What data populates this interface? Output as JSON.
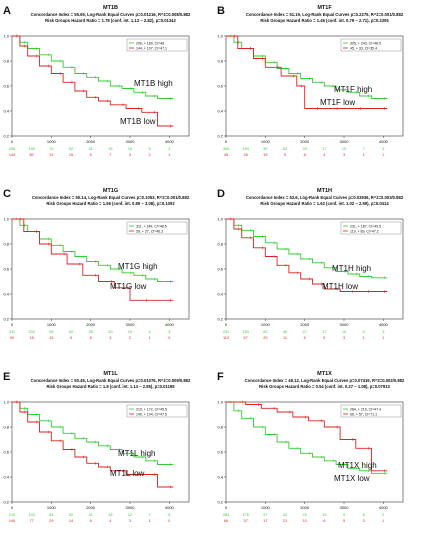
{
  "figure": {
    "colors": {
      "high": "#33cc33",
      "low": "#dd2222",
      "axis": "#333333",
      "text": "#111111"
    }
  },
  "chart_data": [
    {
      "type": "line",
      "panel_letter": "A",
      "title": "MT1B",
      "stats_line1": "Concordance Index = 55.65, Log-Rank Equal Curves p=0.01216, R^2=0.008/0.882",
      "stats_line2": "Risk Groups Hazard Ratio = 1.78 (conf. int. 1.13 ~ 2.82), p=0.01342",
      "legend_placement": "top-right",
      "legend": [
        "206, + 189, CI=48",
        "144, + 107, CI=47.1"
      ],
      "xlim": [
        0,
        4500
      ],
      "ylim": [
        0.2,
        1.0
      ],
      "x_ticks": [
        0,
        1000,
        2000,
        3000,
        4000
      ],
      "y_ticks": [
        0.2,
        0.4,
        0.6,
        0.8,
        1.0
      ],
      "grid": false,
      "series": [
        {
          "name": "MT1B high",
          "x": [
            0,
            200,
            400,
            700,
            1000,
            1300,
            1600,
            1900,
            2200,
            2500,
            2800,
            3100,
            3400,
            3700,
            4100
          ],
          "y": [
            1.0,
            0.95,
            0.9,
            0.85,
            0.8,
            0.75,
            0.7,
            0.67,
            0.64,
            0.6,
            0.58,
            0.55,
            0.52,
            0.5,
            0.5
          ]
        },
        {
          "name": "MT1B low",
          "x": [
            0,
            200,
            400,
            700,
            1000,
            1300,
            1600,
            1900,
            2200,
            2500,
            2900,
            3300,
            3700,
            4100
          ],
          "y": [
            1.0,
            0.92,
            0.84,
            0.76,
            0.7,
            0.63,
            0.56,
            0.51,
            0.48,
            0.45,
            0.42,
            0.39,
            0.28,
            0.28
          ]
        }
      ],
      "risk_table": {
        "x": [
          0,
          500,
          1000,
          1500,
          2000,
          2500,
          3000,
          3500,
          4000
        ],
        "high": [
          206,
          140,
          70,
          52,
          31,
          15,
          10,
          5,
          3
        ],
        "low": [
          144,
          80,
          31,
          15,
          6,
          7,
          3,
          2,
          1
        ]
      }
    },
    {
      "type": "line",
      "panel_letter": "B",
      "title": "MT1F",
      "stats_line1": "Concordance Index = 51.19, Log-Rank Equal Curves p=0.2275, R^2=0.001/0.882",
      "stats_line2": "Risk Groups Hazard Ratio = 1.46 (conf. int. 0.79 ~ 2.71), p=0.2305",
      "legend_placement": "top-right",
      "legend": [
        "305, + 243, CI=48.5",
        "45, + 33, CI=35.4"
      ],
      "xlim": [
        0,
        4500
      ],
      "ylim": [
        0.2,
        1.0
      ],
      "x_ticks": [
        0,
        1000,
        2000,
        3000,
        4000
      ],
      "y_ticks": [
        0.2,
        0.4,
        0.6,
        0.8,
        1.0
      ],
      "grid": false,
      "series": [
        {
          "name": "MT1F high",
          "x": [
            0,
            200,
            400,
            700,
            1000,
            1300,
            1600,
            1900,
            2200,
            2500,
            2800,
            3100,
            3400,
            3700,
            4100
          ],
          "y": [
            1.0,
            0.95,
            0.9,
            0.84,
            0.79,
            0.74,
            0.7,
            0.66,
            0.63,
            0.6,
            0.57,
            0.55,
            0.52,
            0.5,
            0.5
          ]
        },
        {
          "name": "MT1F low",
          "x": [
            0,
            300,
            700,
            1000,
            1400,
            1800,
            2000,
            2400,
            2900,
            3500,
            4100
          ],
          "y": [
            1.0,
            0.9,
            0.82,
            0.75,
            0.68,
            0.6,
            0.42,
            0.42,
            0.42,
            0.42,
            0.42
          ]
        }
      ],
      "risk_table": {
        "x": [
          0,
          500,
          1000,
          1500,
          2000,
          2500,
          3000,
          3500,
          4000
        ],
        "high": [
          305,
          194,
          90,
          62,
          24,
          17,
          10,
          7,
          3
        ],
        "low": [
          45,
          26,
          15,
          5,
          8,
          4,
          3,
          1,
          1
        ]
      }
    },
    {
      "type": "line",
      "panel_letter": "C",
      "title": "MT1G",
      "stats_line1": "Concordance Index = 50.14, Log-Rank Equal Curves p=0.1053, R^2=0.001/0.882",
      "stats_line2": "Risk Groups Hazard Ratio = 1.66 (conf. int. 0.89 ~ 3.08), p=0.1092",
      "legend_placement": "top-right",
      "legend": [
        "311, + 249, CI=48.5",
        "39, + 27, CI=46.3"
      ],
      "xlim": [
        0,
        4500
      ],
      "ylim": [
        0.2,
        1.0
      ],
      "x_ticks": [
        0,
        1000,
        2000,
        3000,
        4000
      ],
      "y_ticks": [
        0.2,
        0.4,
        0.6,
        0.8,
        1.0
      ],
      "grid": false,
      "series": [
        {
          "name": "MT1G high",
          "x": [
            0,
            200,
            400,
            700,
            1000,
            1300,
            1600,
            1900,
            2200,
            2500,
            2800,
            3100,
            3400,
            3700,
            4100
          ],
          "y": [
            1.0,
            0.95,
            0.9,
            0.84,
            0.79,
            0.74,
            0.7,
            0.66,
            0.63,
            0.6,
            0.57,
            0.55,
            0.52,
            0.5,
            0.5
          ]
        },
        {
          "name": "MT1G low",
          "x": [
            0,
            300,
            700,
            1000,
            1400,
            1800,
            2200,
            2600,
            3000,
            3500,
            4100
          ],
          "y": [
            1.0,
            0.9,
            0.8,
            0.72,
            0.64,
            0.55,
            0.5,
            0.45,
            0.35,
            0.35,
            0.35
          ]
        }
      ],
      "risk_table": {
        "x": [
          0,
          500,
          1000,
          1500,
          2000,
          2500,
          3000,
          3500,
          4000
        ],
        "high": [
          311,
          202,
          96,
          62,
          26,
          20,
          10,
          6,
          3
        ],
        "low": [
          39,
          18,
          15,
          5,
          8,
          3,
          2,
          1,
          0
        ]
      }
    },
    {
      "type": "line",
      "panel_letter": "D",
      "title": "MT1H",
      "stats_line1": "Concordance Index = 53.6, Log-Rank Equal Curves p=0.03936, R^2=0.003/0.882",
      "stats_line2": "Risk Groups Hazard Ratio = 1.62 (conf. int. 1.02 ~ 2.59), p=0.0414",
      "legend_placement": "top-right",
      "legend": [
        "231, + 187, CI=49.5",
        "119, + 89, CI=47.2"
      ],
      "xlim": [
        0,
        4500
      ],
      "ylim": [
        0.2,
        1.0
      ],
      "x_ticks": [
        0,
        1000,
        2000,
        3000,
        4000
      ],
      "y_ticks": [
        0.2,
        0.4,
        0.6,
        0.8,
        1.0
      ],
      "grid": false,
      "series": [
        {
          "name": "MT1H high",
          "x": [
            0,
            200,
            400,
            700,
            1000,
            1300,
            1600,
            1900,
            2200,
            2500,
            2800,
            3100,
            3400,
            3700,
            4100
          ],
          "y": [
            1.0,
            0.95,
            0.91,
            0.86,
            0.81,
            0.76,
            0.72,
            0.68,
            0.65,
            0.61,
            0.58,
            0.56,
            0.54,
            0.53,
            0.53
          ]
        },
        {
          "name": "MT1H low",
          "x": [
            0,
            200,
            400,
            700,
            1000,
            1300,
            1600,
            1900,
            2200,
            2500,
            2900,
            3300,
            3700,
            4100
          ],
          "y": [
            1.0,
            0.92,
            0.85,
            0.77,
            0.7,
            0.63,
            0.57,
            0.52,
            0.48,
            0.44,
            0.42,
            0.42,
            0.42,
            0.42
          ]
        }
      ],
      "risk_table": {
        "x": [
          0,
          500,
          1000,
          1500,
          2000,
          2500,
          3000,
          3500,
          4000
        ],
        "high": [
          231,
          153,
          82,
          46,
          27,
          17,
          10,
          5,
          3
        ],
        "low": [
          119,
          67,
          29,
          11,
          6,
          5,
          3,
          1,
          1
        ]
      }
    },
    {
      "type": "line",
      "panel_letter": "E",
      "title": "MT1L",
      "stats_line1": "Concordance Index = 50.45, Log-Rank Equal Curves p=0.01076, R^2=0.009/0.882",
      "stats_line2": "Risk Groups Hazard Ratio = 1.8 (conf. int. 1.14 ~ 2.85), p=0.01195",
      "legend_placement": "top-right",
      "legend": [
        "210, + 172, CI=45.5",
        "140, + 104, CI=47.5"
      ],
      "xlim": [
        0,
        4500
      ],
      "ylim": [
        0.2,
        1.0
      ],
      "x_ticks": [
        0,
        1000,
        2000,
        3000,
        4000
      ],
      "y_ticks": [
        0.2,
        0.4,
        0.6,
        0.8,
        1.0
      ],
      "grid": false,
      "series": [
        {
          "name": "MT1L high",
          "x": [
            0,
            200,
            400,
            700,
            1000,
            1300,
            1600,
            1900,
            2200,
            2500,
            2800,
            3100,
            3400,
            3700,
            4100
          ],
          "y": [
            1.0,
            0.95,
            0.9,
            0.85,
            0.8,
            0.75,
            0.71,
            0.68,
            0.65,
            0.62,
            0.59,
            0.56,
            0.53,
            0.5,
            0.5
          ]
        },
        {
          "name": "MT1L low",
          "x": [
            0,
            200,
            400,
            700,
            1000,
            1300,
            1600,
            1900,
            2200,
            2500,
            2900,
            3300,
            3700,
            4100
          ],
          "y": [
            1.0,
            0.92,
            0.84,
            0.76,
            0.69,
            0.62,
            0.56,
            0.51,
            0.48,
            0.45,
            0.42,
            0.42,
            0.32,
            0.32
          ]
        }
      ],
      "risk_table": {
        "x": [
          0,
          500,
          1000,
          1500,
          2000,
          2500,
          3000,
          3500,
          4000
        ],
        "high": [
          210,
          143,
          84,
          52,
          31,
          18,
          12,
          7,
          5
        ],
        "low": [
          140,
          77,
          29,
          14,
          6,
          4,
          3,
          1,
          0
        ]
      }
    },
    {
      "type": "line",
      "panel_letter": "F",
      "title": "MT1X",
      "stats_line1": "Concordance Index = 49.12, Log-Rank Equal Curves p=0.07419, R^2=0.002/0.882",
      "stats_line2": "Risk Groups Hazard Ratio = 0.54 (conf. int. 0.27 ~ 1.08), p=0.07913",
      "legend_placement": "top-right",
      "legend": [
        "284, + 219, CI=47.4",
        "66, + 57, CI=71.1"
      ],
      "xlim": [
        0,
        4500
      ],
      "ylim": [
        0.2,
        1.0
      ],
      "x_ticks": [
        0,
        1000,
        2000,
        3000,
        4000
      ],
      "y_ticks": [
        0.2,
        0.4,
        0.6,
        0.8,
        1.0
      ],
      "grid": false,
      "series": [
        {
          "name": "MT1X high",
          "x": [
            0,
            200,
            400,
            700,
            1000,
            1300,
            1600,
            1900,
            2200,
            2500,
            2800,
            3100,
            3400,
            3700,
            4100
          ],
          "y": [
            1.0,
            0.93,
            0.87,
            0.8,
            0.74,
            0.68,
            0.63,
            0.59,
            0.56,
            0.53,
            0.5,
            0.47,
            0.45,
            0.43,
            0.43
          ]
        },
        {
          "name": "MT1X low",
          "x": [
            0,
            500,
            900,
            1300,
            1700,
            2100,
            2500,
            2900,
            3300,
            3700,
            4100
          ],
          "y": [
            1.0,
            0.98,
            0.95,
            0.92,
            0.88,
            0.85,
            0.8,
            0.7,
            0.63,
            0.45,
            0.45
          ]
        }
      ],
      "risk_table": {
        "x": [
          0,
          500,
          1000,
          1500,
          2000,
          2500,
          3000,
          3500,
          4000
        ],
        "high": [
          284,
          176,
          97,
          42,
          24,
          15,
          9,
          6,
          2
        ],
        "low": [
          66,
          37,
          17,
          21,
          10,
          6,
          5,
          3,
          1
        ]
      }
    }
  ]
}
